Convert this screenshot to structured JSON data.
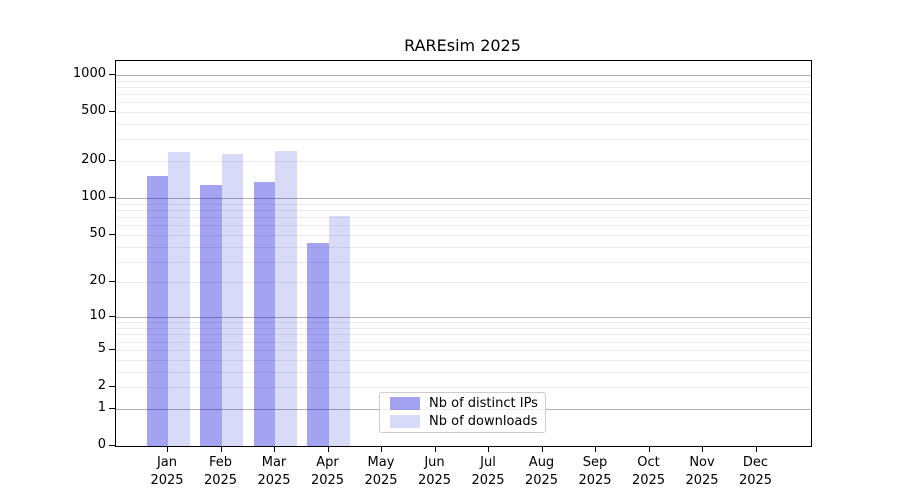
{
  "chart_data": {
    "type": "bar",
    "title": "RAREsim 2025",
    "x_tick_months": [
      "Jan",
      "Feb",
      "Mar",
      "Apr",
      "May",
      "Jun",
      "Jul",
      "Aug",
      "Sep",
      "Oct",
      "Nov",
      "Dec"
    ],
    "x_tick_year": "2025",
    "series": [
      {
        "name": "Nb of distinct IPs",
        "color_hex": "#a3a3f0",
        "rgba": "rgba(0,0,215,0.36)",
        "values": [
          151,
          128,
          135,
          43,
          0,
          0,
          0,
          0,
          0,
          0,
          0,
          0
        ]
      },
      {
        "name": "Nb of downloads",
        "color_hex": "#d9d9f8",
        "rgba": "rgba(0,0,208,0.15)",
        "values": [
          237,
          229,
          243,
          71,
          0,
          0,
          0,
          0,
          0,
          0,
          0,
          0
        ]
      }
    ],
    "y_ticks": [
      0,
      1,
      2,
      5,
      10,
      20,
      50,
      100,
      200,
      500,
      1000
    ],
    "y_scale": "log10(1+value)",
    "ylim": [
      0,
      1294
    ],
    "grid": {
      "major_values": [
        1,
        10,
        100,
        1000
      ],
      "minor_values": [
        2,
        3,
        4,
        5,
        6,
        7,
        8,
        9,
        20,
        30,
        40,
        50,
        60,
        70,
        80,
        90,
        200,
        300,
        400,
        500,
        600,
        700,
        800,
        900
      ],
      "major_color": "#b0b0b0",
      "minor_color": "#ebebeb"
    },
    "legend_position": "lower center"
  }
}
